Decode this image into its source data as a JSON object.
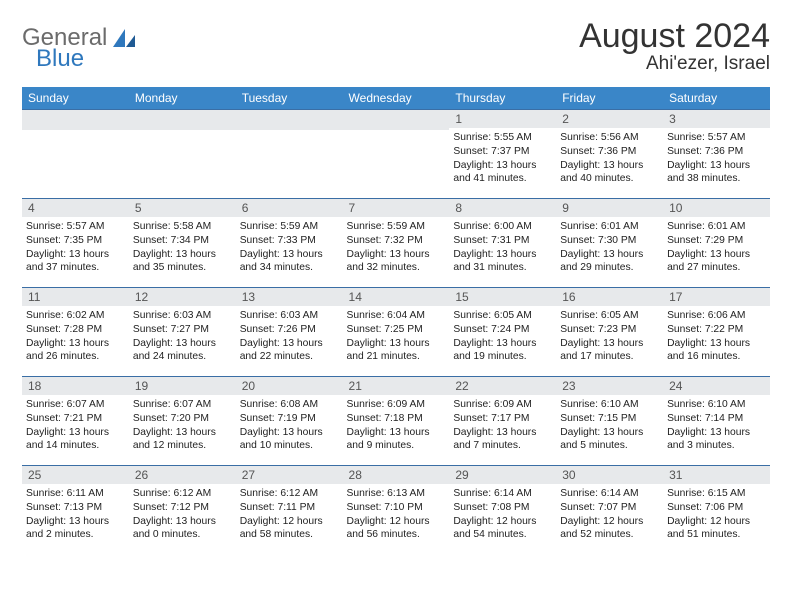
{
  "brand": {
    "part1": "General",
    "part2": "Blue"
  },
  "title": "August 2024",
  "location": "Ahi'ezer, Israel",
  "colors": {
    "header_bg": "#3a86c8",
    "header_text": "#ffffff",
    "daynum_bg": "#e7e9eb",
    "row_border": "#3a6ea5",
    "brand_gray": "#6b6b6b",
    "brand_blue": "#2f78bd"
  },
  "weekdays": [
    "Sunday",
    "Monday",
    "Tuesday",
    "Wednesday",
    "Thursday",
    "Friday",
    "Saturday"
  ],
  "weeks": [
    [
      null,
      null,
      null,
      null,
      {
        "n": "1",
        "sr": "Sunrise: 5:55 AM",
        "ss": "Sunset: 7:37 PM",
        "dl": "Daylight: 13 hours and 41 minutes."
      },
      {
        "n": "2",
        "sr": "Sunrise: 5:56 AM",
        "ss": "Sunset: 7:36 PM",
        "dl": "Daylight: 13 hours and 40 minutes."
      },
      {
        "n": "3",
        "sr": "Sunrise: 5:57 AM",
        "ss": "Sunset: 7:36 PM",
        "dl": "Daylight: 13 hours and 38 minutes."
      }
    ],
    [
      {
        "n": "4",
        "sr": "Sunrise: 5:57 AM",
        "ss": "Sunset: 7:35 PM",
        "dl": "Daylight: 13 hours and 37 minutes."
      },
      {
        "n": "5",
        "sr": "Sunrise: 5:58 AM",
        "ss": "Sunset: 7:34 PM",
        "dl": "Daylight: 13 hours and 35 minutes."
      },
      {
        "n": "6",
        "sr": "Sunrise: 5:59 AM",
        "ss": "Sunset: 7:33 PM",
        "dl": "Daylight: 13 hours and 34 minutes."
      },
      {
        "n": "7",
        "sr": "Sunrise: 5:59 AM",
        "ss": "Sunset: 7:32 PM",
        "dl": "Daylight: 13 hours and 32 minutes."
      },
      {
        "n": "8",
        "sr": "Sunrise: 6:00 AM",
        "ss": "Sunset: 7:31 PM",
        "dl": "Daylight: 13 hours and 31 minutes."
      },
      {
        "n": "9",
        "sr": "Sunrise: 6:01 AM",
        "ss": "Sunset: 7:30 PM",
        "dl": "Daylight: 13 hours and 29 minutes."
      },
      {
        "n": "10",
        "sr": "Sunrise: 6:01 AM",
        "ss": "Sunset: 7:29 PM",
        "dl": "Daylight: 13 hours and 27 minutes."
      }
    ],
    [
      {
        "n": "11",
        "sr": "Sunrise: 6:02 AM",
        "ss": "Sunset: 7:28 PM",
        "dl": "Daylight: 13 hours and 26 minutes."
      },
      {
        "n": "12",
        "sr": "Sunrise: 6:03 AM",
        "ss": "Sunset: 7:27 PM",
        "dl": "Daylight: 13 hours and 24 minutes."
      },
      {
        "n": "13",
        "sr": "Sunrise: 6:03 AM",
        "ss": "Sunset: 7:26 PM",
        "dl": "Daylight: 13 hours and 22 minutes."
      },
      {
        "n": "14",
        "sr": "Sunrise: 6:04 AM",
        "ss": "Sunset: 7:25 PM",
        "dl": "Daylight: 13 hours and 21 minutes."
      },
      {
        "n": "15",
        "sr": "Sunrise: 6:05 AM",
        "ss": "Sunset: 7:24 PM",
        "dl": "Daylight: 13 hours and 19 minutes."
      },
      {
        "n": "16",
        "sr": "Sunrise: 6:05 AM",
        "ss": "Sunset: 7:23 PM",
        "dl": "Daylight: 13 hours and 17 minutes."
      },
      {
        "n": "17",
        "sr": "Sunrise: 6:06 AM",
        "ss": "Sunset: 7:22 PM",
        "dl": "Daylight: 13 hours and 16 minutes."
      }
    ],
    [
      {
        "n": "18",
        "sr": "Sunrise: 6:07 AM",
        "ss": "Sunset: 7:21 PM",
        "dl": "Daylight: 13 hours and 14 minutes."
      },
      {
        "n": "19",
        "sr": "Sunrise: 6:07 AM",
        "ss": "Sunset: 7:20 PM",
        "dl": "Daylight: 13 hours and 12 minutes."
      },
      {
        "n": "20",
        "sr": "Sunrise: 6:08 AM",
        "ss": "Sunset: 7:19 PM",
        "dl": "Daylight: 13 hours and 10 minutes."
      },
      {
        "n": "21",
        "sr": "Sunrise: 6:09 AM",
        "ss": "Sunset: 7:18 PM",
        "dl": "Daylight: 13 hours and 9 minutes."
      },
      {
        "n": "22",
        "sr": "Sunrise: 6:09 AM",
        "ss": "Sunset: 7:17 PM",
        "dl": "Daylight: 13 hours and 7 minutes."
      },
      {
        "n": "23",
        "sr": "Sunrise: 6:10 AM",
        "ss": "Sunset: 7:15 PM",
        "dl": "Daylight: 13 hours and 5 minutes."
      },
      {
        "n": "24",
        "sr": "Sunrise: 6:10 AM",
        "ss": "Sunset: 7:14 PM",
        "dl": "Daylight: 13 hours and 3 minutes."
      }
    ],
    [
      {
        "n": "25",
        "sr": "Sunrise: 6:11 AM",
        "ss": "Sunset: 7:13 PM",
        "dl": "Daylight: 13 hours and 2 minutes."
      },
      {
        "n": "26",
        "sr": "Sunrise: 6:12 AM",
        "ss": "Sunset: 7:12 PM",
        "dl": "Daylight: 13 hours and 0 minutes."
      },
      {
        "n": "27",
        "sr": "Sunrise: 6:12 AM",
        "ss": "Sunset: 7:11 PM",
        "dl": "Daylight: 12 hours and 58 minutes."
      },
      {
        "n": "28",
        "sr": "Sunrise: 6:13 AM",
        "ss": "Sunset: 7:10 PM",
        "dl": "Daylight: 12 hours and 56 minutes."
      },
      {
        "n": "29",
        "sr": "Sunrise: 6:14 AM",
        "ss": "Sunset: 7:08 PM",
        "dl": "Daylight: 12 hours and 54 minutes."
      },
      {
        "n": "30",
        "sr": "Sunrise: 6:14 AM",
        "ss": "Sunset: 7:07 PM",
        "dl": "Daylight: 12 hours and 52 minutes."
      },
      {
        "n": "31",
        "sr": "Sunrise: 6:15 AM",
        "ss": "Sunset: 7:06 PM",
        "dl": "Daylight: 12 hours and 51 minutes."
      }
    ]
  ]
}
